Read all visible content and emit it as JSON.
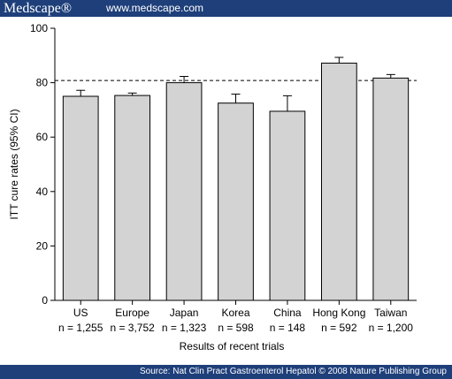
{
  "header": {
    "brand": "Medscape®",
    "site": "www.medscape.com"
  },
  "footer": {
    "source": "Source: Nat Clin Pract Gastroenterol Hepatol © 2008 Nature Publishing Group"
  },
  "chart_data": {
    "type": "bar",
    "categories": [
      "US",
      "Europe",
      "Japan",
      "Korea",
      "China",
      "Hong Kong",
      "Taiwan"
    ],
    "n_labels": [
      "n = 1,255",
      "n = 3,752",
      "n = 1,323",
      "n = 598",
      "n = 148",
      "n = 592",
      "n = 1,200"
    ],
    "values": [
      75,
      75.3,
      80,
      72.5,
      69.5,
      87.2,
      81.7
    ],
    "error_upper": [
      77.2,
      76.2,
      82.3,
      75.8,
      75.2,
      89.3,
      83
    ],
    "reference_line": 80.8,
    "xlabel": "Results of recent trials",
    "ylabel": "ITT cure rates (95% CI)",
    "ylim": [
      0,
      100
    ],
    "yticks": [
      0,
      20,
      40,
      60,
      80,
      100
    ],
    "bar_color": "#d3d3d3",
    "grid": false,
    "colors": {
      "banner": "#1e3f7a",
      "banner_text": "#ffffff"
    }
  }
}
